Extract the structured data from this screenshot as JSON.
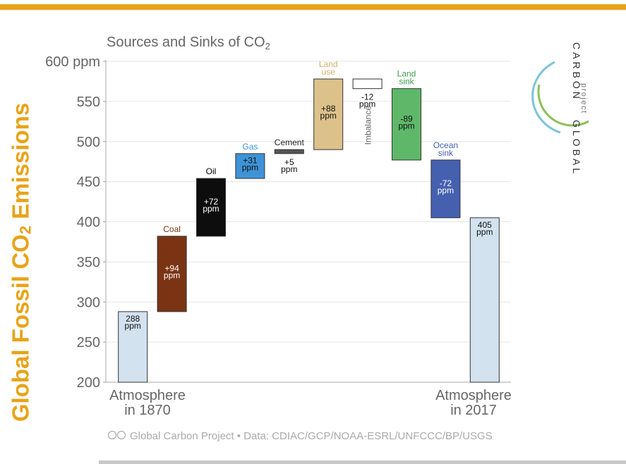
{
  "page": {
    "accent_color": "#e8a317",
    "side_title": {
      "prefix": "Global Fossil CO",
      "subscript": "2",
      "suffix": " Emissions"
    }
  },
  "logo": {
    "word_top": "CARBON",
    "word_small": "project",
    "word_bottom": "GLOBAL",
    "ring_colors": [
      "#7cc4d8",
      "#8bbf5a"
    ]
  },
  "chart_data": {
    "type": "waterfall",
    "title": "Sources and Sinks of CO",
    "title_subscript": "2",
    "y_unit": "ppm",
    "ylim": [
      200,
      600
    ],
    "yticks": [
      200,
      250,
      300,
      350,
      400,
      450,
      500,
      550,
      600
    ],
    "grid": true,
    "bars": [
      {
        "top_label": "",
        "value_label": "288\nppm",
        "bottom": 200,
        "top": 288,
        "color": "#d3e2ef",
        "label_color": "",
        "text_color": "#111111",
        "text_at": "top"
      },
      {
        "top_label": "Coal",
        "value_label": "+94\nppm",
        "bottom": 288,
        "top": 382,
        "color": "#7a3414",
        "label_color": "#7a3414",
        "text_color": "#ffffff",
        "text_at": "middle"
      },
      {
        "top_label": "Oil",
        "value_label": "+72\nppm",
        "bottom": 382,
        "top": 454,
        "color": "#0d0d0d",
        "label_color": "#000000",
        "text_color": "#ffffff",
        "text_at": "middle"
      },
      {
        "top_label": "Gas",
        "value_label": "+31\nppm",
        "bottom": 454,
        "top": 485,
        "color": "#3e93d6",
        "label_color": "#3e93d6",
        "text_color": "#111111",
        "text_at": "middle"
      },
      {
        "top_label": "Cement",
        "value_label": "+5\nppm",
        "bottom": 485,
        "top": 490,
        "color": "#555555",
        "label_color": "#222222",
        "text_color": "#111111",
        "text_at": "below"
      },
      {
        "top_label": "Land\nuse",
        "value_label": "+88\nppm",
        "bottom": 490,
        "top": 578,
        "color": "#dcc28a",
        "label_color": "#d4b068",
        "text_color": "#111111",
        "text_at": "middle"
      },
      {
        "top_label": "",
        "value_label": "-12\nppm",
        "bottom": 566,
        "top": 578,
        "color": "#ffffff",
        "label_color": "",
        "text_color": "#111111",
        "text_at": "below",
        "side_label": "Imbalance"
      },
      {
        "top_label": "Land\nsink",
        "value_label": "-89\nppm",
        "bottom": 477,
        "top": 566,
        "color": "#5fb86a",
        "label_color": "#3d9e4e",
        "text_color": "#111111",
        "text_at": "middle"
      },
      {
        "top_label": "Ocean\nsink",
        "value_label": "-72\nppm",
        "bottom": 405,
        "top": 477,
        "color": "#4660b0",
        "label_color": "#4660b0",
        "text_color": "#ffffff",
        "text_at": "middle"
      },
      {
        "top_label": "",
        "value_label": "405\nppm",
        "bottom": 200,
        "top": 405,
        "color": "#d3e2ef",
        "label_color": "",
        "text_color": "#111111",
        "text_at": "top"
      }
    ],
    "x_labels_left": [
      "Atmosphere",
      "in 1870"
    ],
    "x_labels_right": [
      "Atmosphere",
      "in 2017"
    ],
    "footer": "Global Carbon Project  •  Data: CDIAC/GCP/NOAA-ESRL/UNFCCC/BP/USGS"
  }
}
